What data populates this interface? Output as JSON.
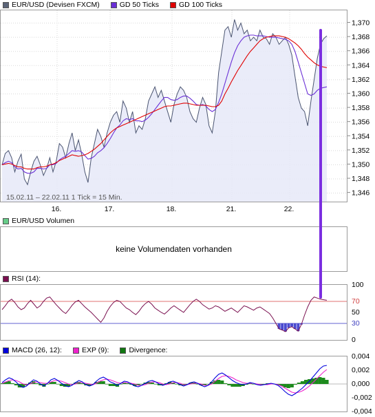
{
  "price_panel": {
    "legend": [
      {
        "label": "EUR/USD (Devisen FXCM)",
        "color": "#5b6478"
      },
      {
        "label": "GD 50 Ticks",
        "color": "#6a2fd6"
      },
      {
        "label": "GD 100 Ticks",
        "color": "#e00000"
      }
    ],
    "info": "15.02.11 – 22.02.11   1 Tick = 15 Min."
  },
  "volume_panel": {
    "legend": {
      "label": "EUR/USD Volumen",
      "color": "#66cc88"
    },
    "message": "keine Volumendaten vorhanden"
  },
  "rsi_panel": {
    "legend": {
      "label": "RSI (14):",
      "color": "#7a0f4f"
    }
  },
  "macd_panel": {
    "legend": [
      {
        "label": "MACD (26, 12):",
        "color": "#0000dd"
      },
      {
        "label": "EXP (9):",
        "color": "#ee22cc"
      },
      {
        "label": "Divergence:",
        "color": "#117711"
      }
    ]
  },
  "chart_data": [
    {
      "type": "line",
      "title": "EUR/USD (Devisen FXCM)",
      "x_ticks": [
        "16.",
        "17.",
        "18.",
        "21.",
        "22."
      ],
      "y_ticks": [
        1.346,
        1.348,
        1.35,
        1.352,
        1.354,
        1.356,
        1.358,
        1.36,
        1.362,
        1.364,
        1.366,
        1.368,
        1.37
      ],
      "y_tick_labels": [
        "1,346",
        "1,348",
        "1,350",
        "1,352",
        "1,354",
        "1,356",
        "1,358",
        "1,360",
        "1,362",
        "1,364",
        "1,366",
        "1,368",
        "1,370"
      ],
      "ylim": [
        1.3448,
        1.3718
      ],
      "grid": true,
      "series": [
        {
          "name": "EUR/USD (Devisen FXCM)",
          "color": "#4a5470",
          "values": [
            1.35,
            1.3516,
            1.352,
            1.351,
            1.349,
            1.3505,
            1.3515,
            1.348,
            1.3472,
            1.349,
            1.3505,
            1.3512,
            1.35,
            1.3485,
            1.3495,
            1.351,
            1.349,
            1.3505,
            1.353,
            1.3525,
            1.351,
            1.353,
            1.3545,
            1.352,
            1.3535,
            1.3515,
            1.349,
            1.3475,
            1.351,
            1.353,
            1.355,
            1.354,
            1.3525,
            1.3545,
            1.356,
            1.357,
            1.3575,
            1.356,
            1.359,
            1.358,
            1.356,
            1.3575,
            1.3545,
            1.3555,
            1.355,
            1.3565,
            1.359,
            1.36,
            1.361,
            1.3595,
            1.3605,
            1.359,
            1.3575,
            1.356,
            1.3585,
            1.36,
            1.361,
            1.3605,
            1.3595,
            1.3575,
            1.3565,
            1.356,
            1.358,
            1.3595,
            1.3585,
            1.3555,
            1.3545,
            1.3575,
            1.363,
            1.366,
            1.369,
            1.3695,
            1.368,
            1.3705,
            1.369,
            1.37,
            1.3685,
            1.369,
            1.3675,
            1.368,
            1.3675,
            1.369,
            1.368,
            1.3678,
            1.367,
            1.3685,
            1.368,
            1.367,
            1.3675,
            1.368,
            1.367,
            1.3655,
            1.3625,
            1.3595,
            1.358,
            1.3575,
            1.3555,
            1.359,
            1.362,
            1.365,
            1.367,
            1.3678,
            1.3682
          ]
        },
        {
          "name": "GD 50 Ticks",
          "color": "#6a2fd6",
          "values": [
            1.35,
            1.3503,
            1.3505,
            1.3503,
            1.3497,
            1.3494,
            1.3495,
            1.349,
            1.3488,
            1.3488,
            1.349,
            1.3495,
            1.3495,
            1.3494,
            1.3495,
            1.35,
            1.35,
            1.3502,
            1.3507,
            1.351,
            1.3512,
            1.3516,
            1.352,
            1.3519,
            1.352,
            1.3518,
            1.3513,
            1.3508,
            1.3509,
            1.3512,
            1.3517,
            1.352,
            1.3524,
            1.353,
            1.3537,
            1.3545,
            1.3552,
            1.3556,
            1.3562,
            1.3565,
            1.3564,
            1.3565,
            1.3562,
            1.3562,
            1.3561,
            1.3563,
            1.3567,
            1.3572,
            1.3578,
            1.3584,
            1.359,
            1.3595,
            1.3595,
            1.3592,
            1.3591,
            1.3592,
            1.3595,
            1.3597,
            1.3597,
            1.3594,
            1.359,
            1.3585,
            1.3584,
            1.3585,
            1.3583,
            1.3578,
            1.3575,
            1.3578,
            1.3588,
            1.36,
            1.3615,
            1.363,
            1.3645,
            1.3658,
            1.3668,
            1.3675,
            1.368,
            1.3682,
            1.3683,
            1.3683,
            1.3682,
            1.3682,
            1.3682,
            1.3681,
            1.368,
            1.368,
            1.368,
            1.3679,
            1.3678,
            1.3677,
            1.3675,
            1.367,
            1.366,
            1.3645,
            1.363,
            1.3615,
            1.36,
            1.3598,
            1.36,
            1.3605,
            1.3608,
            1.3609,
            1.361
          ]
        },
        {
          "name": "GD 100 Ticks",
          "color": "#e00000",
          "values": [
            1.35,
            1.3501,
            1.3502,
            1.3501,
            1.3499,
            1.3497,
            1.3497,
            1.3495,
            1.3494,
            1.3494,
            1.3494,
            1.3496,
            1.3497,
            1.3497,
            1.3498,
            1.35,
            1.3501,
            1.3503,
            1.3506,
            1.3508,
            1.351,
            1.3512,
            1.3514,
            1.3513,
            1.3512,
            1.3513,
            1.3514,
            1.3516,
            1.3519,
            1.3522,
            1.3526,
            1.353,
            1.3535,
            1.354,
            1.3545,
            1.3549,
            1.3552,
            1.3554,
            1.3556,
            1.3558,
            1.356,
            1.3562,
            1.3564,
            1.3566,
            1.3568,
            1.357,
            1.3572,
            1.3574,
            1.3576,
            1.3578,
            1.358,
            1.3582,
            1.3583,
            1.3583,
            1.3584,
            1.3585,
            1.3586,
            1.3587,
            1.3587,
            1.3586,
            1.3585,
            1.3584,
            1.3584,
            1.3584,
            1.3584,
            1.3583,
            1.3582,
            1.3582,
            1.3584,
            1.359,
            1.36,
            1.3608,
            1.3617,
            1.3625,
            1.3633,
            1.364,
            1.3647,
            1.3654,
            1.366,
            1.3665,
            1.367,
            1.3675,
            1.3678,
            1.368,
            1.3681,
            1.3682,
            1.3682,
            1.3682,
            1.3681,
            1.368,
            1.3678,
            1.3675,
            1.3672,
            1.3668,
            1.3663,
            1.3657,
            1.3652,
            1.3648,
            1.3644,
            1.3641,
            1.3639,
            1.3638,
            1.3637
          ]
        }
      ]
    },
    {
      "type": "line",
      "title": "RSI (14):",
      "y_ticks": [
        0,
        30,
        50,
        70,
        100
      ],
      "ylim": [
        0,
        100
      ],
      "reference_lines": [
        30,
        70
      ],
      "series": [
        {
          "name": "RSI (14):",
          "color": "#7a0f4f",
          "values": [
            55,
            62,
            70,
            74,
            68,
            60,
            55,
            58,
            66,
            72,
            65,
            58,
            62,
            70,
            76,
            78,
            71,
            64,
            58,
            52,
            48,
            55,
            63,
            69,
            72,
            66,
            60,
            55,
            50,
            44,
            38,
            32,
            40,
            52,
            61,
            68,
            72,
            70,
            64,
            58,
            55,
            50,
            46,
            52,
            60,
            66,
            70,
            65,
            58,
            54,
            50,
            47,
            52,
            58,
            62,
            58,
            54,
            50,
            57,
            64,
            70,
            74,
            70,
            64,
            60,
            56,
            58,
            62,
            60,
            56,
            52,
            55,
            58,
            54,
            50,
            56,
            62,
            60,
            57,
            54,
            58,
            60,
            56,
            52,
            48,
            40,
            30,
            20,
            18,
            15,
            22,
            24,
            20,
            16,
            28,
            45,
            60,
            72,
            78,
            76,
            74,
            73,
            72
          ]
        }
      ]
    },
    {
      "type": "line",
      "title": "MACD (26, 12):",
      "y_ticks": [
        -0.004,
        -0.002,
        0,
        0.002,
        0.004
      ],
      "y_tick_labels": [
        "-0,004",
        "-0,002",
        "0,000",
        "0,002",
        "0,004"
      ],
      "ylim": [
        -0.004,
        0.004
      ],
      "series": [
        {
          "name": "MACD (26, 12):",
          "color": "#0000dd",
          "values": [
            0.0002,
            0.0006,
            0.0009,
            0.0007,
            0.0003,
            -0.0002,
            -0.0005,
            -0.0003,
            0.0002,
            0.0006,
            0.0004,
            0.0,
            -0.0003,
            0.0001,
            0.0006,
            0.0008,
            0.0005,
            0.0001,
            -0.0002,
            -0.0004,
            -0.0002,
            0.0002,
            0.0005,
            0.0003,
            -0.0001,
            -0.0003,
            -0.0001,
            0.0004,
            0.0008,
            0.001,
            0.0007,
            0.0003,
            0.0001,
            -0.0002,
            0.0001,
            0.0004,
            0.0003,
            0.0,
            -0.0003,
            -0.0004,
            -0.0002,
            0.0001,
            0.0004,
            0.0005,
            0.0003,
            0.0,
            -0.0002,
            0.0,
            0.0003,
            0.0004,
            0.0002,
            -0.0001,
            -0.0003,
            -0.0001,
            0.0002,
            0.0003,
            0.0001,
            -0.0002,
            -0.0004,
            -0.0002,
            0.0003,
            0.0009,
            0.0014,
            0.0016,
            0.0013,
            0.0009,
            0.0005,
            0.0002,
            0.0,
            -0.0001,
            0.0,
            0.0002,
            0.0001,
            -0.0001,
            -0.0002,
            -0.0001,
            0.0,
            0.0001,
            0.0,
            -0.0002,
            -0.0006,
            -0.0011,
            -0.0015,
            -0.0017,
            -0.0014,
            -0.001,
            -0.0006,
            -0.0001,
            0.0004,
            0.001,
            0.0016,
            0.0022,
            0.0026,
            0.0027
          ]
        },
        {
          "name": "EXP (9):",
          "color": "#ee22cc",
          "values": [
            0.0001,
            0.0003,
            0.0005,
            0.0006,
            0.0005,
            0.0003,
            0.0,
            -0.0001,
            0.0,
            0.0002,
            0.0003,
            0.0002,
            0.0001,
            0.0001,
            0.0003,
            0.0005,
            0.0005,
            0.0004,
            0.0002,
            0.0,
            -0.0001,
            0.0,
            0.0002,
            0.0002,
            0.0001,
            0.0,
            -0.0001,
            0.0001,
            0.0004,
            0.0006,
            0.0007,
            0.0006,
            0.0004,
            0.0002,
            0.0001,
            0.0002,
            0.0002,
            0.0001,
            0.0,
            -0.0002,
            -0.0002,
            -0.0001,
            0.0001,
            0.0003,
            0.0003,
            0.0002,
            0.0,
            -0.0001,
            0.0,
            0.0002,
            0.0002,
            0.0001,
            -0.0001,
            -0.0001,
            0.0,
            0.0001,
            0.0001,
            0.0,
            -0.0002,
            -0.0002,
            0.0,
            0.0004,
            0.0008,
            0.0011,
            0.0012,
            0.0011,
            0.0009,
            0.0006,
            0.0004,
            0.0002,
            0.0001,
            0.0001,
            0.0001,
            0.0,
            -0.0001,
            -0.0001,
            -0.0001,
            0.0,
            0.0,
            -0.0001,
            -0.0003,
            -0.0006,
            -0.0009,
            -0.0012,
            -0.0013,
            -0.0012,
            -0.001,
            -0.0007,
            -0.0003,
            0.0002,
            0.0007,
            0.0012,
            0.0017,
            0.0021
          ]
        }
      ]
    }
  ]
}
